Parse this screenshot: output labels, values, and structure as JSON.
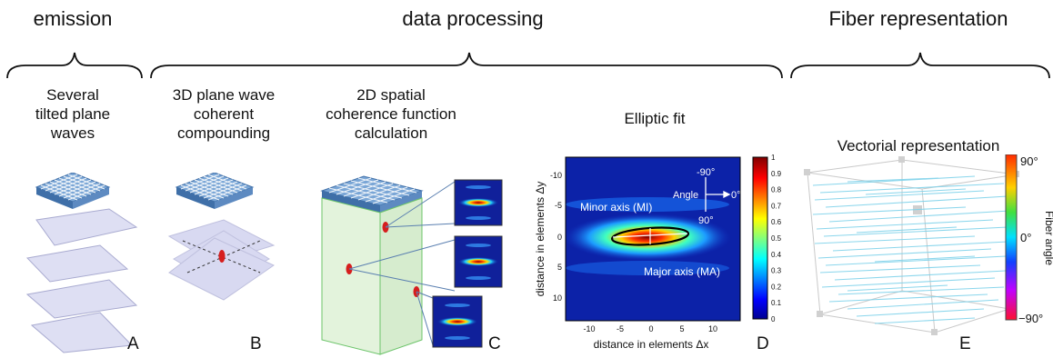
{
  "sections": [
    {
      "id": "emission",
      "label": "emission"
    },
    {
      "id": "processing",
      "label": "data processing"
    },
    {
      "id": "fiber",
      "label": "Fiber representation"
    }
  ],
  "subtitles": {
    "a": [
      "Several",
      "tilted plane",
      "waves"
    ],
    "b": [
      "3D plane wave",
      "coherent",
      "compounding"
    ],
    "c": [
      "2D spatial",
      "coherence function",
      "calculation"
    ],
    "d": [
      "Elliptic fit"
    ],
    "e": [
      "Vectorial representation"
    ]
  },
  "panel_letters": [
    "A",
    "B",
    "C",
    "D",
    "E"
  ],
  "fit_plot": {
    "xlabel": "distance in elements Δx",
    "ylabel": "distance in elements Δy",
    "xticks": [
      "-10",
      "-5",
      "0",
      "5",
      "10"
    ],
    "yticks": [
      "-10",
      "-5",
      "0",
      "5",
      "10"
    ],
    "minor_label": "Minor axis (MI)",
    "major_label": "Major axis (MA)",
    "angle_label": "Angle",
    "angle_top": "-90°",
    "angle_right": "0°",
    "angle_bottom": "90°",
    "colorbar_ticks": [
      "1",
      "0.9",
      "0.8",
      "0.7",
      "0.6",
      "0.5",
      "0.4",
      "0.3",
      "0.2",
      "0.1",
      "0"
    ]
  },
  "fiber_colorbar": {
    "label": "Fiber angle",
    "top": "90°",
    "mid": "0°",
    "bottom": "−90°"
  },
  "colors": {
    "probe_top": "#7aa6d6",
    "probe_side": "#3f6fa8",
    "wave": "#c8c9ea",
    "focus": "#d61e1e",
    "fiber": "#7fd2ea",
    "medium": "#e3f3dc"
  }
}
